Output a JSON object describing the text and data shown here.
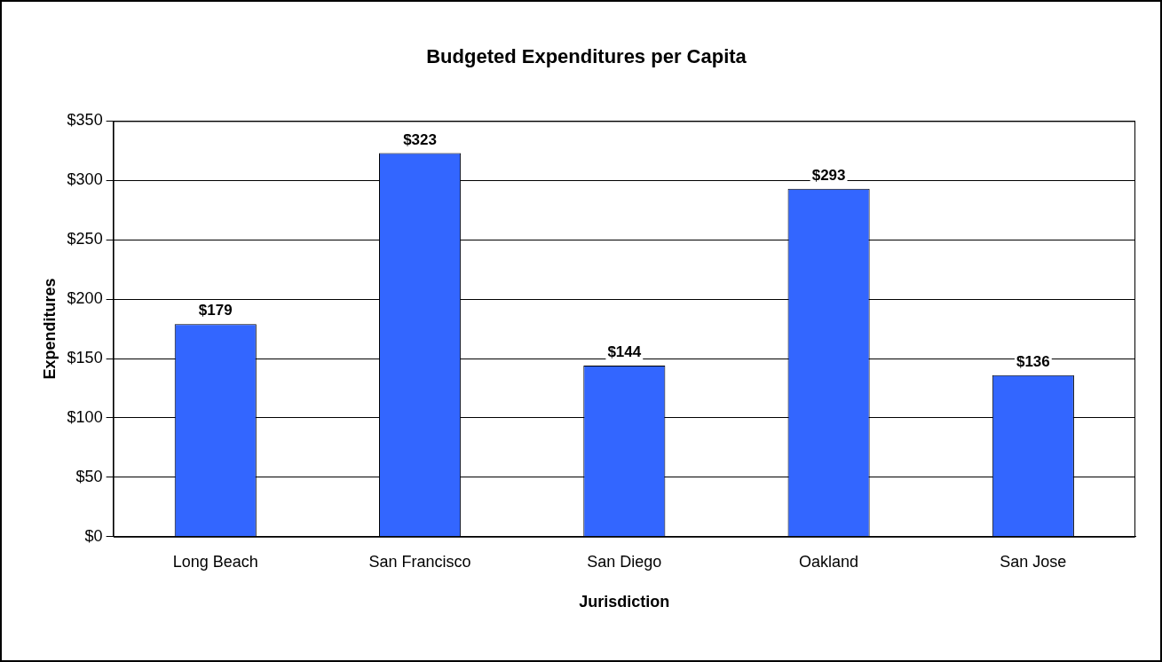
{
  "chart_data": {
    "type": "bar",
    "title": "Budgeted Expenditures per Capita",
    "xlabel": "Jurisdiction",
    "ylabel": "Expenditures",
    "categories": [
      "Long Beach",
      "San Francisco",
      "San Diego",
      "Oakland",
      "San Jose"
    ],
    "values": [
      179,
      323,
      144,
      293,
      136
    ],
    "color": "#3366ff",
    "value_labels": [
      "$179",
      "$323",
      "$144",
      "$293",
      "$136"
    ],
    "ylim": [
      0,
      350
    ],
    "yticks": [
      {
        "value": 0,
        "label": "$0"
      },
      {
        "value": 50,
        "label": "$50"
      },
      {
        "value": 100,
        "label": "$100"
      },
      {
        "value": 150,
        "label": "$150"
      },
      {
        "value": 200,
        "label": "$200"
      },
      {
        "value": 250,
        "label": "$250"
      },
      {
        "value": 300,
        "label": "$300"
      },
      {
        "value": 350,
        "label": "$350"
      }
    ],
    "grid": "y",
    "legend": false
  }
}
